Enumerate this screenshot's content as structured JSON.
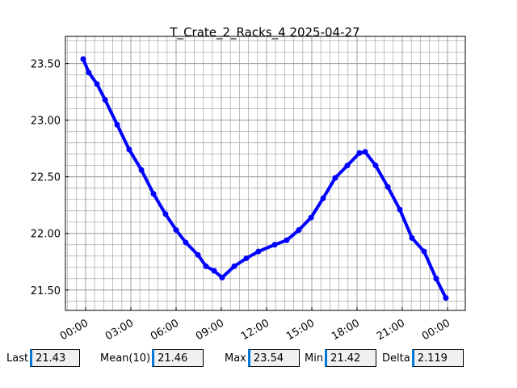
{
  "chart_data": {
    "type": "line",
    "title": "T_Crate_2_Racks_4 2025-04-27",
    "x": [
      -0.16,
      0.21,
      0.75,
      1.29,
      2.09,
      2.89,
      3.7,
      4.5,
      5.3,
      6.0,
      6.64,
      7.45,
      7.98,
      8.52,
      9.05,
      9.86,
      10.66,
      11.46,
      12.54,
      13.34,
      14.14,
      14.95,
      15.75,
      16.55,
      17.36,
      18.16,
      18.54,
      19.23,
      20.04,
      20.84,
      21.64,
      22.45,
      23.25,
      23.89
    ],
    "series": [
      {
        "name": "T_Crate_2_Racks_4",
        "color": "#0000ff",
        "values": [
          23.54,
          23.42,
          23.32,
          23.18,
          22.96,
          22.74,
          22.56,
          22.35,
          22.17,
          22.03,
          21.92,
          21.81,
          21.71,
          21.67,
          21.61,
          21.71,
          21.78,
          21.84,
          21.9,
          21.94,
          22.03,
          22.14,
          22.31,
          22.49,
          22.6,
          22.71,
          22.72,
          22.6,
          22.41,
          22.21,
          21.96,
          21.84,
          21.6,
          21.43
        ]
      }
    ],
    "xlim": [
      -1.34,
      25.18
    ],
    "ylim": [
      21.32,
      23.74
    ],
    "xticks": [
      {
        "value": 0,
        "label": "00:00"
      },
      {
        "value": 3,
        "label": "03:00"
      },
      {
        "value": 6,
        "label": "06:00"
      },
      {
        "value": 9,
        "label": "09:00"
      },
      {
        "value": 12,
        "label": "12:00"
      },
      {
        "value": 15,
        "label": "15:00"
      },
      {
        "value": 18,
        "label": "18:00"
      },
      {
        "value": 21,
        "label": "21:00"
      },
      {
        "value": 24,
        "label": "00:00"
      }
    ],
    "yticks": [
      {
        "value": 21.5,
        "label": "21.50"
      },
      {
        "value": 22,
        "label": "22.00"
      },
      {
        "value": 22.5,
        "label": "22.50"
      },
      {
        "value": 23,
        "label": "23.00"
      },
      {
        "value": 23.5,
        "label": "23.50"
      }
    ],
    "grid": true,
    "minor_grid": true
  },
  "status_bar": [
    {
      "label": "Last",
      "value": "21.43"
    },
    {
      "label": "Mean(10)",
      "value": "21.46"
    },
    {
      "label": "Max",
      "value": "23.54"
    },
    {
      "label": "Min",
      "value": "21.42"
    },
    {
      "label": "Delta",
      "value": "2.119"
    }
  ]
}
